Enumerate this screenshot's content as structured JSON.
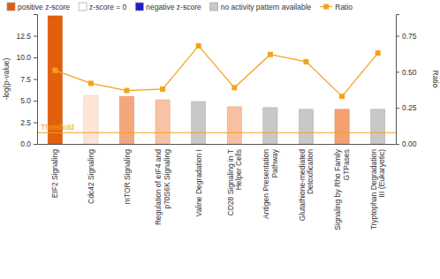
{
  "chart_data": {
    "type": "bar",
    "y_label": "-log(p-value)",
    "y2_label": "Ratio",
    "categories": [
      "EIF2 Signaling",
      "Cdc42 Signaling",
      "mTOR Signaling",
      "Regulation of eIF4 and p70S6K Signaling",
      "Valine Degradation I",
      "CD28 Signaling in T Helper Cells",
      "Antigen Presentation Pathway",
      "Glutathione-mediated Detoxification",
      "Signaling by Rho Family GTPases",
      "Tryptophan Degradation III (Eukaryotic)"
    ],
    "series": [
      {
        "type": "bar",
        "values": [
          14.8,
          5.6,
          5.5,
          5.1,
          4.9,
          4.3,
          4.2,
          4.0,
          4.0,
          4.0
        ],
        "colors": [
          "#e35f0c",
          "#fce5d6",
          "#f4a77b",
          "#f8c3a4",
          "#c8c8c8",
          "#f8c0a0",
          "#c8c8c8",
          "#c8c8c8",
          "#f4a070",
          "#c8c8c8"
        ]
      },
      {
        "name": "Ratio",
        "type": "line",
        "axis": "y2",
        "color": "#f2a31c",
        "marker": "square",
        "values": [
          0.51,
          0.42,
          0.37,
          0.38,
          0.68,
          0.39,
          0.62,
          0.57,
          0.33,
          0.63
        ]
      }
    ],
    "legend_items": [
      {
        "label": "positive z-score",
        "color": "#e35f0c"
      },
      {
        "label": "z-score = 0",
        "color": "#ffffff"
      },
      {
        "label": "negative z-score",
        "color": "#1f1fc4"
      },
      {
        "label": "no activity pattern available",
        "color": "#c8c8c8"
      }
    ],
    "threshold": {
      "value": 1.3,
      "label": "Threshold",
      "color": "#f2a31c"
    },
    "ylim": [
      0,
      15
    ],
    "yticks": [
      {
        "value": 0,
        "label": "0.0"
      },
      {
        "value": 2.5,
        "label": "2.5"
      },
      {
        "value": 5,
        "label": "5.0"
      },
      {
        "value": 7.5,
        "label": "7.5"
      },
      {
        "value": 10,
        "label": "10.0"
      },
      {
        "value": 12.5,
        "label": "12.5"
      }
    ],
    "y2lim": [
      0,
      0.9
    ],
    "y2ticks": [
      {
        "value": 0,
        "label": "0.00"
      },
      {
        "value": 0.25,
        "label": "0.25"
      },
      {
        "value": 0.5,
        "label": "0.50"
      },
      {
        "value": 0.75,
        "label": "0.75"
      }
    ],
    "legend": "top",
    "grid": false
  }
}
